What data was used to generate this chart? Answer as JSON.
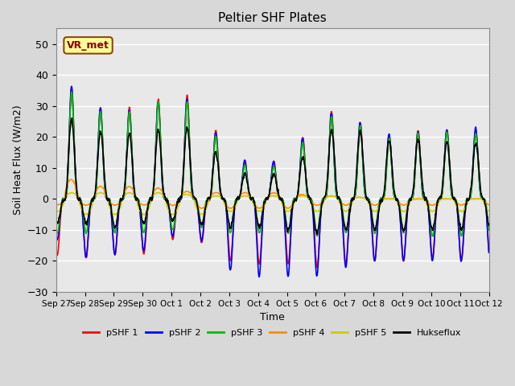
{
  "title": "Peltier SHF Plates",
  "xlabel": "Time",
  "ylabel": "Soil Heat Flux (W/m2)",
  "ylim": [
    -30,
    55
  ],
  "yticks": [
    -30,
    -20,
    -10,
    0,
    10,
    20,
    30,
    40,
    50
  ],
  "annotation_text": "VR_met",
  "annotation_color": "#8B0000",
  "annotation_bg": "#FFFF99",
  "annotation_border": "#8B4513",
  "background_color": "#E8E8E8",
  "series_colors": {
    "pSHF 1": "#FF0000",
    "pSHF 2": "#0000FF",
    "pSHF 3": "#00BB00",
    "pSHF 4": "#FF8C00",
    "pSHF 5": "#CCCC00",
    "Hukseflux": "#000000"
  },
  "linewidth": 1.2,
  "num_days": 15,
  "points_per_day": 144,
  "pos_amps": [
    43,
    30,
    29,
    30,
    34,
    33,
    13,
    11,
    13,
    26,
    30,
    20,
    21,
    23,
    22
  ],
  "neg_amps": [
    -18,
    -19,
    -18,
    -18,
    -13,
    -14,
    -20,
    -21,
    -21,
    -22,
    -21,
    -20,
    -20,
    -19,
    -20
  ],
  "pos_amps_2": [
    42,
    31,
    28,
    29,
    34,
    31,
    13,
    12,
    12,
    26,
    29,
    21,
    21,
    22,
    23
  ],
  "neg_amps_2": [
    -13,
    -19,
    -18,
    -17,
    -12,
    -13,
    -23,
    -25,
    -25,
    -25,
    -22,
    -20,
    -20,
    -20,
    -20
  ],
  "pos_amps_3": [
    40,
    30,
    27,
    29,
    33,
    30,
    12,
    10,
    11,
    24,
    29,
    19,
    20,
    22,
    21
  ],
  "neg_amps_3": [
    -11,
    -11,
    -11,
    -11,
    -10,
    -9,
    -11,
    -11,
    -11,
    -12,
    -11,
    -11,
    -11,
    -12,
    -12
  ],
  "pos_amps_4": [
    9,
    4,
    4,
    4,
    3,
    2,
    2,
    2,
    2,
    1,
    1,
    0,
    0,
    0,
    0
  ],
  "neg_amps_4": [
    -2,
    -2,
    -2,
    -2,
    -2,
    -3,
    -3,
    -3,
    -3,
    -2,
    -2,
    -2,
    -2,
    -2,
    -2
  ],
  "pos_amps_5": [
    2,
    2,
    2,
    2,
    2,
    1,
    1,
    1,
    1,
    1,
    1,
    0,
    0,
    0,
    0
  ],
  "neg_amps_5": [
    -4,
    -5,
    -5,
    -5,
    -5,
    -5,
    -4,
    -4,
    -4,
    -4,
    -4,
    -4,
    -4,
    -4,
    -4
  ],
  "pos_amps_h": [
    30,
    22,
    21,
    21,
    23,
    23,
    8,
    8,
    8,
    18,
    26,
    18,
    19,
    19,
    18
  ],
  "neg_amps_h": [
    -8,
    -8,
    -9,
    -8,
    -7,
    -8,
    -9,
    -9,
    -10,
    -11,
    -10,
    -10,
    -10,
    -10,
    -10
  ]
}
